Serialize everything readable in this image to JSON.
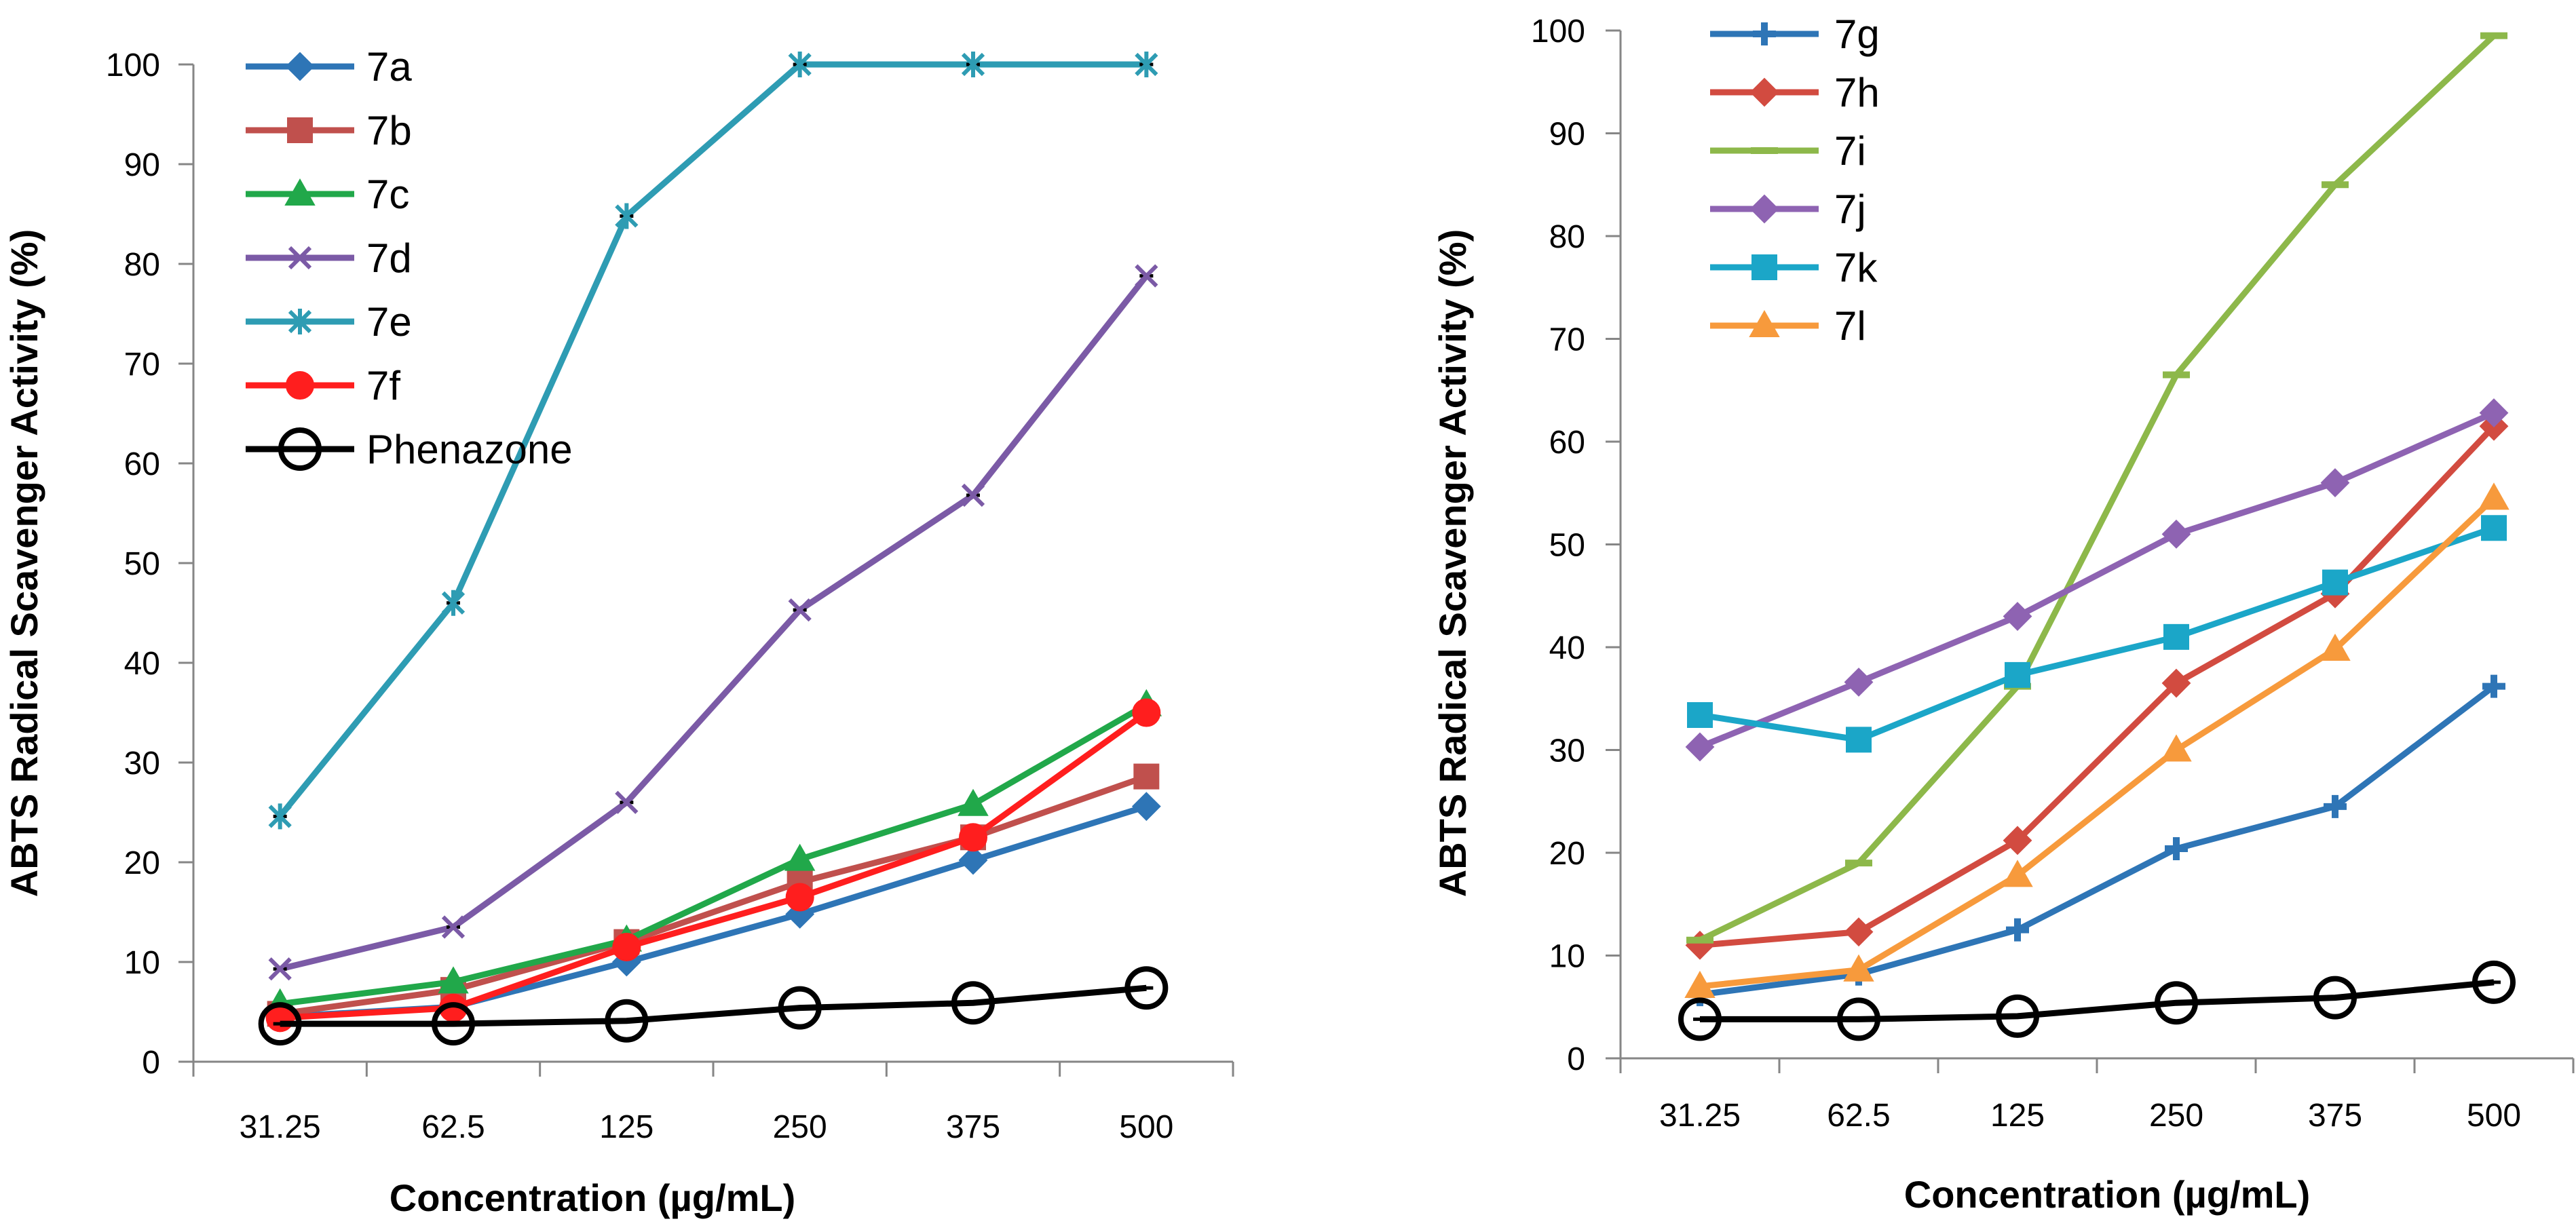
{
  "chart_data": [
    {
      "type": "line",
      "title": "",
      "xlabel": "Concentration (µg/mL)",
      "ylabel": "ABTS Radical Scavenger Activity (%)",
      "categories": [
        "31.25",
        "62.5",
        "125",
        "250",
        "375",
        "500"
      ],
      "yticks": [
        "0",
        "10",
        "20",
        "30",
        "40",
        "50",
        "60",
        "70",
        "80",
        "90",
        "100"
      ],
      "ylim": [
        0,
        100
      ],
      "grid": false,
      "legend_position": "top-left",
      "series": [
        {
          "name": "7a",
          "color": "#2E75B6",
          "marker": "diamond",
          "values": [
            4.5,
            5.5,
            10,
            14.8,
            20.2,
            25.6
          ]
        },
        {
          "name": "7b",
          "color": "#C0504D",
          "marker": "square",
          "values": [
            4.8,
            7.2,
            12,
            18,
            22.5,
            28.6
          ]
        },
        {
          "name": "7c",
          "color": "#21A84A",
          "marker": "triangle",
          "values": [
            5.8,
            8,
            12.2,
            20.3,
            25.8,
            35.8
          ]
        },
        {
          "name": "7d",
          "color": "#7B5AA6",
          "marker": "x",
          "values": [
            9.3,
            13.5,
            26,
            45.3,
            56.8,
            78.8
          ]
        },
        {
          "name": "7e",
          "color": "#2E9CB3",
          "marker": "asterisk",
          "values": [
            24.6,
            46,
            84.8,
            100,
            100,
            100
          ]
        },
        {
          "name": "7f",
          "color": "#FF1E1E",
          "marker": "circle",
          "values": [
            4.4,
            5.4,
            11.5,
            16.5,
            22.5,
            35
          ]
        },
        {
          "name": "Phenazone",
          "color": "#000000",
          "marker": "open-circle",
          "values": [
            3.8,
            3.8,
            4.1,
            5.4,
            5.9,
            7.4
          ]
        }
      ]
    },
    {
      "type": "line",
      "title": "",
      "xlabel": "Concentration (µg/mL)",
      "ylabel": "ABTS Radical Scavenger Activity (%)",
      "categories": [
        "31.25",
        "62.5",
        "125",
        "250",
        "375",
        "500"
      ],
      "yticks": [
        "0",
        "10",
        "20",
        "30",
        "40",
        "50",
        "60",
        "70",
        "80",
        "90",
        "100"
      ],
      "ylim": [
        0,
        100
      ],
      "grid": false,
      "legend_position": "top-left",
      "series": [
        {
          "name": "7g",
          "color": "#2E75B6",
          "marker": "plus",
          "values": [
            6.2,
            8.2,
            12.5,
            20.4,
            24.5,
            36.2
          ]
        },
        {
          "name": "7h",
          "color": "#D24B40",
          "marker": "diamond",
          "values": [
            11,
            12.3,
            21.2,
            36.5,
            45.2,
            61.5
          ]
        },
        {
          "name": "7i",
          "color": "#8DB84A",
          "marker": "dash",
          "values": [
            11.5,
            19,
            36.2,
            66.5,
            85,
            99.5
          ]
        },
        {
          "name": "7j",
          "color": "#8E63B2",
          "marker": "diamond",
          "values": [
            30.3,
            36.6,
            43,
            51,
            56,
            62.8
          ]
        },
        {
          "name": "7k",
          "color": "#1BA6C8",
          "marker": "square",
          "values": [
            33.4,
            31,
            37.3,
            41,
            46.3,
            51.6
          ]
        },
        {
          "name": "7l",
          "color": "#F79A3C",
          "marker": "triangle",
          "values": [
            7,
            8.6,
            17.8,
            30,
            39.8,
            54.5
          ]
        },
        {
          "name": "Phenazone",
          "color": "#000000",
          "marker": "open-circle",
          "values": [
            3.8,
            3.8,
            4.1,
            5.4,
            5.9,
            7.4
          ],
          "in_legend": false
        }
      ]
    }
  ]
}
